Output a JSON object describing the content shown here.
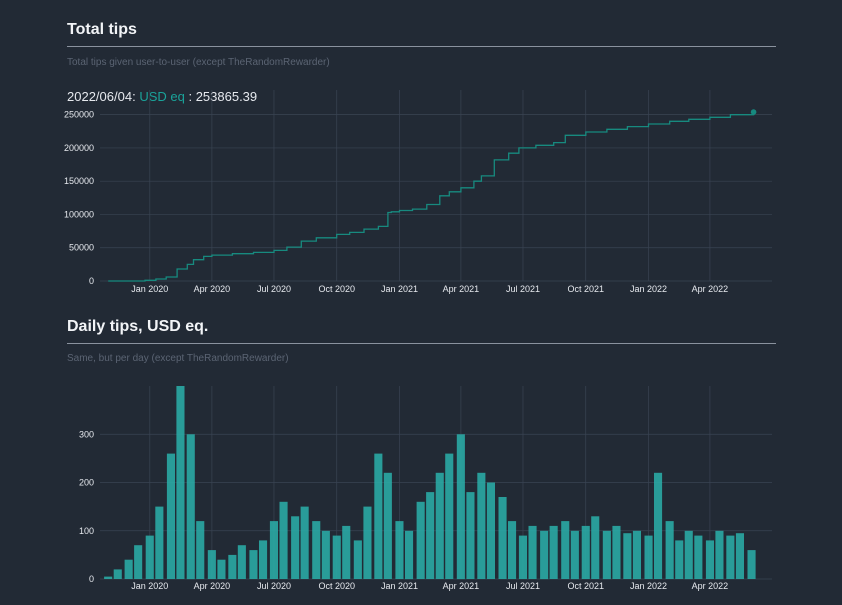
{
  "charts": [
    {
      "title": "Total tips",
      "subtitle": "Total tips given user-to-user (except TheRandomRewarder)"
    },
    {
      "title": "Daily tips, USD eq.",
      "subtitle": "Same, but per day (except TheRandomRewarder)"
    }
  ],
  "readout": {
    "date": "2022/06/04:",
    "series_label": "USD eq",
    "separator": " : ",
    "value": "253865.39"
  },
  "colors": {
    "background": "#222a35",
    "line": "#178a7f",
    "bars": "#2ab0aa",
    "accent": "#1aa39a",
    "grid": "#3a4453"
  },
  "chart_data": [
    {
      "type": "line",
      "title": "Total tips",
      "subtitle": "Total tips given user-to-user (except TheRandomRewarder)",
      "xlabel": "",
      "ylabel": "",
      "x_ticks": [
        "Jan 2020",
        "Apr 2020",
        "Jul 2020",
        "Oct 2020",
        "Jan 2021",
        "Apr 2021",
        "Jul 2021",
        "Oct 2021",
        "Jan 2022",
        "Apr 2022"
      ],
      "y_ticks": [
        "0",
        "50000",
        "100000",
        "150000",
        "200000",
        "250000"
      ],
      "ylim": [
        0,
        260000
      ],
      "xlim": [
        "2019-10-20",
        "2022-07-01"
      ],
      "grid": true,
      "series": [
        {
          "x": [
            "2019-11-01",
            "2019-12-01",
            "2019-12-25",
            "2020-01-10",
            "2020-01-25",
            "2020-02-10",
            "2020-02-25",
            "2020-03-05",
            "2020-03-20",
            "2020-04-01",
            "2020-05-01",
            "2020-06-01",
            "2020-07-01",
            "2020-07-20",
            "2020-08-10",
            "2020-09-01",
            "2020-10-01",
            "2020-10-20",
            "2020-11-10",
            "2020-12-01",
            "2020-12-15",
            "2020-12-20",
            "2021-01-01",
            "2021-01-20",
            "2021-02-10",
            "2021-03-01",
            "2021-03-15",
            "2021-04-01",
            "2021-04-20",
            "2021-05-01",
            "2021-05-20",
            "2021-06-10",
            "2021-06-25",
            "2021-07-20",
            "2021-08-15",
            "2021-09-01",
            "2021-10-01",
            "2021-11-01",
            "2021-12-01",
            "2022-01-01",
            "2022-02-01",
            "2022-03-01",
            "2022-04-01",
            "2022-05-01",
            "2022-06-04"
          ],
          "y": [
            0,
            0,
            1000,
            3000,
            6000,
            18000,
            25000,
            32000,
            37000,
            39000,
            41000,
            43000,
            46000,
            51000,
            60000,
            65000,
            70000,
            73000,
            78000,
            82000,
            103000,
            104000,
            106000,
            108000,
            115000,
            128000,
            134000,
            140000,
            150000,
            158000,
            182000,
            192000,
            200000,
            204000,
            208000,
            219000,
            224000,
            228000,
            232000,
            236000,
            240000,
            243000,
            246000,
            250000,
            253865.39
          ]
        }
      ]
    },
    {
      "type": "bar",
      "title": "Daily tips, USD eq.",
      "subtitle": "Same, but per day (except TheRandomRewarder)",
      "xlabel": "",
      "ylabel": "",
      "x_ticks": [
        "Jan 2020",
        "Apr 2020",
        "Jul 2020",
        "Oct 2020",
        "Jan 2021",
        "Apr 2021",
        "Jul 2021",
        "Oct 2021",
        "Jan 2022",
        "Apr 2022"
      ],
      "y_ticks": [
        "0",
        "100",
        "200",
        "300"
      ],
      "ylim": [
        0,
        400
      ],
      "grid": true,
      "series": [
        {
          "x": [
            "2019-11-01",
            "2019-11-15",
            "2019-12-01",
            "2019-12-15",
            "2020-01-01",
            "2020-01-15",
            "2020-02-01",
            "2020-02-15",
            "2020-03-01",
            "2020-03-15",
            "2020-04-01",
            "2020-04-15",
            "2020-05-01",
            "2020-05-15",
            "2020-06-01",
            "2020-06-15",
            "2020-07-01",
            "2020-07-15",
            "2020-08-01",
            "2020-08-15",
            "2020-09-01",
            "2020-09-15",
            "2020-10-01",
            "2020-10-15",
            "2020-11-01",
            "2020-11-15",
            "2020-12-01",
            "2020-12-15",
            "2021-01-01",
            "2021-01-15",
            "2021-02-01",
            "2021-02-15",
            "2021-03-01",
            "2021-03-15",
            "2021-04-01",
            "2021-04-15",
            "2021-05-01",
            "2021-05-15",
            "2021-06-01",
            "2021-06-15",
            "2021-07-01",
            "2021-07-15",
            "2021-08-01",
            "2021-08-15",
            "2021-09-01",
            "2021-09-15",
            "2021-10-01",
            "2021-10-15",
            "2021-11-01",
            "2021-11-15",
            "2021-12-01",
            "2021-12-15",
            "2022-01-01",
            "2022-01-15",
            "2022-02-01",
            "2022-02-15",
            "2022-03-01",
            "2022-03-15",
            "2022-04-01",
            "2022-04-15",
            "2022-05-01",
            "2022-05-15",
            "2022-06-01"
          ],
          "y": [
            5,
            20,
            40,
            70,
            90,
            150,
            260,
            400,
            300,
            120,
            60,
            40,
            50,
            70,
            60,
            80,
            120,
            160,
            130,
            150,
            120,
            100,
            90,
            110,
            80,
            150,
            260,
            220,
            120,
            100,
            160,
            180,
            220,
            260,
            300,
            180,
            220,
            200,
            170,
            120,
            90,
            110,
            100,
            110,
            120,
            100,
            110,
            130,
            100,
            110,
            95,
            100,
            90,
            220,
            120,
            80,
            100,
            90,
            80,
            100,
            90,
            95,
            60
          ]
        }
      ]
    }
  ]
}
